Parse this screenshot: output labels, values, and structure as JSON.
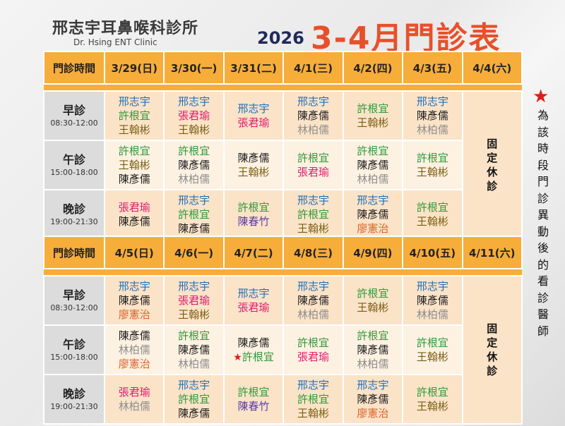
{
  "header": {
    "clinic_name": "邢志宇耳鼻喉科診所",
    "clinic_en": "Dr. Hsing ENT Clinic",
    "year": "2026",
    "title": "3-4月門診表"
  },
  "header_label": "門診時間",
  "closed_text": "固\n定\n休\n診",
  "legend": {
    "text": "為該時段門診異動後的看診醫師"
  },
  "slots": [
    {
      "name": "早診",
      "time": "08:30-12:00"
    },
    {
      "name": "午診",
      "time": "15:00-18:00"
    },
    {
      "name": "晚診",
      "time": "19:00-21:30"
    }
  ],
  "colors": {
    "blue": "#1f6fb8",
    "green": "#2e9a3a",
    "pink": "#e0196e",
    "black": "#1a1a1a",
    "olive": "#7a5e12",
    "gray": "#8d8d8d",
    "purple": "#5a3aa8",
    "orange": "#d9622a",
    "header_bg": "#f7ad3a",
    "title": "#e8502b"
  },
  "weeks": [
    {
      "dates": [
        "3/29(日)",
        "3/30(一)",
        "3/31(二)",
        "4/1(三)",
        "4/2(四)",
        "4/3(五)",
        "4/4(六)"
      ],
      "grid": [
        [
          [
            [
              "邢志宇",
              "blue"
            ],
            [
              "許根宜",
              "green"
            ],
            [
              "王翰彬",
              "olive"
            ]
          ],
          [
            [
              "邢志宇",
              "blue"
            ],
            [
              "張君瑜",
              "pink"
            ],
            [
              "王翰彬",
              "olive"
            ]
          ],
          [
            [
              "邢志宇",
              "blue"
            ],
            [
              "張君瑜",
              "pink"
            ]
          ],
          [
            [
              "邢志宇",
              "blue"
            ],
            [
              "陳彥儒",
              "black"
            ],
            [
              "林柏儒",
              "gray"
            ]
          ],
          [
            [
              "許根宜",
              "green"
            ],
            [
              "王翰彬",
              "olive"
            ]
          ],
          [
            [
              "邢志宇",
              "blue"
            ],
            [
              "陳彥儒",
              "black"
            ],
            [
              "林柏儒",
              "gray"
            ]
          ]
        ],
        [
          [
            [
              "許根宜",
              "green"
            ],
            [
              "王翰彬",
              "olive"
            ],
            [
              "陳彥儒",
              "black"
            ]
          ],
          [
            [
              "許根宜",
              "green"
            ],
            [
              "陳彥儒",
              "black"
            ],
            [
              "林柏儒",
              "gray"
            ]
          ],
          [
            [
              "陳彥儒",
              "black"
            ],
            [
              "王翰彬",
              "olive"
            ]
          ],
          [
            [
              "許根宜",
              "green"
            ],
            [
              "張君瑜",
              "pink"
            ]
          ],
          [
            [
              "許根宜",
              "green"
            ],
            [
              "陳彥儒",
              "black"
            ],
            [
              "林柏儒",
              "gray"
            ]
          ],
          [
            [
              "許根宜",
              "green"
            ],
            [
              "王翰彬",
              "olive"
            ]
          ]
        ],
        [
          [
            [
              "張君瑜",
              "pink"
            ],
            [
              "陳彥儒",
              "black"
            ]
          ],
          [
            [
              "邢志宇",
              "blue"
            ],
            [
              "許根宜",
              "green"
            ],
            [
              "陳彥儒",
              "black"
            ]
          ],
          [
            [
              "許根宜",
              "green"
            ],
            [
              "陳春竹",
              "purple"
            ]
          ],
          [
            [
              "邢志宇",
              "blue"
            ],
            [
              "許根宜",
              "green"
            ],
            [
              "王翰彬",
              "olive"
            ]
          ],
          [
            [
              "邢志宇",
              "blue"
            ],
            [
              "陳彥儒",
              "black"
            ],
            [
              "廖憲治",
              "orange"
            ]
          ],
          [
            [
              "許根宜",
              "green"
            ],
            [
              "王翰彬",
              "olive"
            ]
          ]
        ]
      ]
    },
    {
      "dates": [
        "4/5(日)",
        "4/6(一)",
        "4/7(二)",
        "4/8(三)",
        "4/9(四)",
        "4/10(五)",
        "4/11(六)"
      ],
      "grid": [
        [
          [
            [
              "邢志宇",
              "blue"
            ],
            [
              "陳彥儒",
              "black"
            ],
            [
              "廖憲治",
              "orange"
            ]
          ],
          [
            [
              "邢志宇",
              "blue"
            ],
            [
              "張君瑜",
              "pink"
            ],
            [
              "王翰彬",
              "olive"
            ]
          ],
          [
            [
              "邢志宇",
              "blue"
            ],
            [
              "張君瑜",
              "pink"
            ]
          ],
          [
            [
              "邢志宇",
              "blue"
            ],
            [
              "陳彥儒",
              "black"
            ],
            [
              "林柏儒",
              "gray"
            ]
          ],
          [
            [
              "許根宜",
              "green"
            ],
            [
              "王翰彬",
              "olive"
            ]
          ],
          [
            [
              "邢志宇",
              "blue"
            ],
            [
              "陳彥儒",
              "black"
            ],
            [
              "林柏儒",
              "gray"
            ]
          ]
        ],
        [
          [
            [
              "陳彥儒",
              "black"
            ],
            [
              "林柏儒",
              "gray"
            ],
            [
              "廖憲治",
              "orange"
            ]
          ],
          [
            [
              "許根宜",
              "green"
            ],
            [
              "陳彥儒",
              "black"
            ],
            [
              "林柏儒",
              "gray"
            ]
          ],
          [
            [
              "陳彥儒",
              "black"
            ],
            [
              "★許根宜",
              "green"
            ]
          ],
          [
            [
              "許根宜",
              "green"
            ],
            [
              "張君瑜",
              "pink"
            ]
          ],
          [
            [
              "許根宜",
              "green"
            ],
            [
              "陳彥儒",
              "black"
            ],
            [
              "林柏儒",
              "gray"
            ]
          ],
          [
            [
              "許根宜",
              "green"
            ],
            [
              "王翰彬",
              "olive"
            ]
          ]
        ],
        [
          [
            [
              "張君瑜",
              "pink"
            ],
            [
              "林柏儒",
              "gray"
            ]
          ],
          [
            [
              "邢志宇",
              "blue"
            ],
            [
              "許根宜",
              "green"
            ],
            [
              "陳彥儒",
              "black"
            ]
          ],
          [
            [
              "許根宜",
              "green"
            ],
            [
              "陳春竹",
              "purple"
            ]
          ],
          [
            [
              "邢志宇",
              "blue"
            ],
            [
              "許根宜",
              "green"
            ],
            [
              "王翰彬",
              "olive"
            ]
          ],
          [
            [
              "邢志宇",
              "blue"
            ],
            [
              "陳彥儒",
              "black"
            ],
            [
              "廖憲治",
              "orange"
            ]
          ],
          [
            [
              "許根宜",
              "green"
            ],
            [
              "王翰彬",
              "olive"
            ]
          ]
        ]
      ]
    }
  ]
}
